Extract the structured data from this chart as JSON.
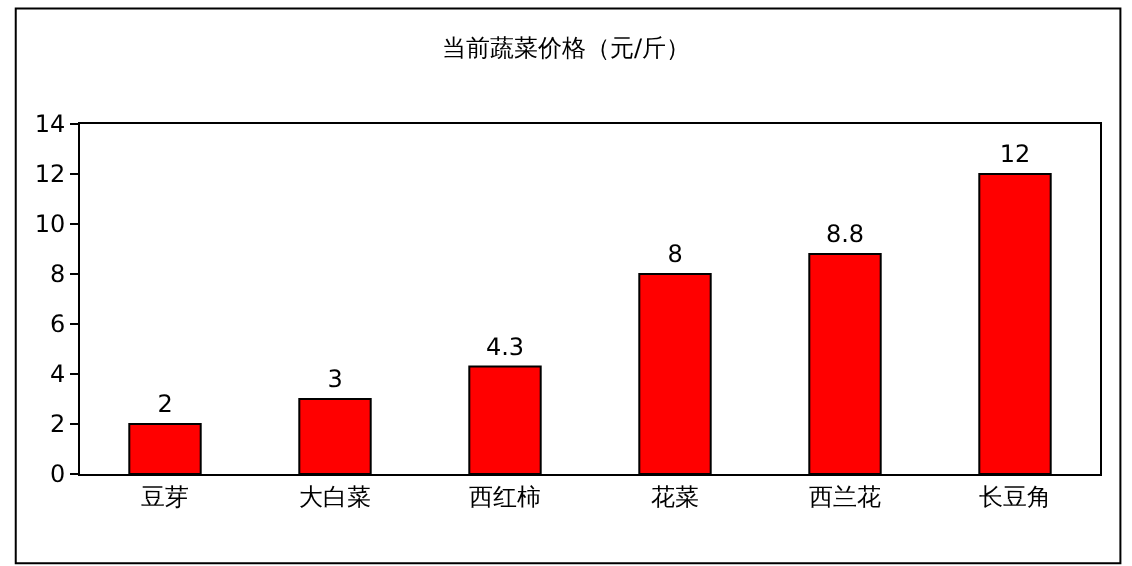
{
  "chart_data": {
    "type": "bar",
    "title": "当前蔬菜价格（元/斤）",
    "categories": [
      "豆芽",
      "大白菜",
      "西红柿",
      "花菜",
      "西兰花",
      "长豆角"
    ],
    "values": [
      2,
      3,
      4.3,
      8,
      8.8,
      12
    ],
    "color": "#ff0000",
    "ylim": [
      0,
      14
    ],
    "yticks": [
      0,
      2,
      4,
      6,
      8,
      10,
      12,
      14
    ],
    "data_labels": true,
    "legend": false
  }
}
